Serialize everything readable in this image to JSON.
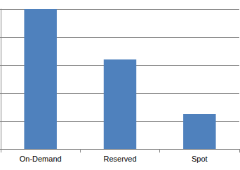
{
  "chart_data": {
    "type": "bar",
    "categories": [
      "On-Demand",
      "Reserved",
      "Spot"
    ],
    "values": [
      5,
      3.2,
      1.25
    ],
    "color": "#4f81bd",
    "ylim": [
      0,
      5
    ],
    "yticks": [
      0,
      1,
      2,
      3,
      4,
      5
    ],
    "grid": true,
    "tick_labels": "x"
  }
}
